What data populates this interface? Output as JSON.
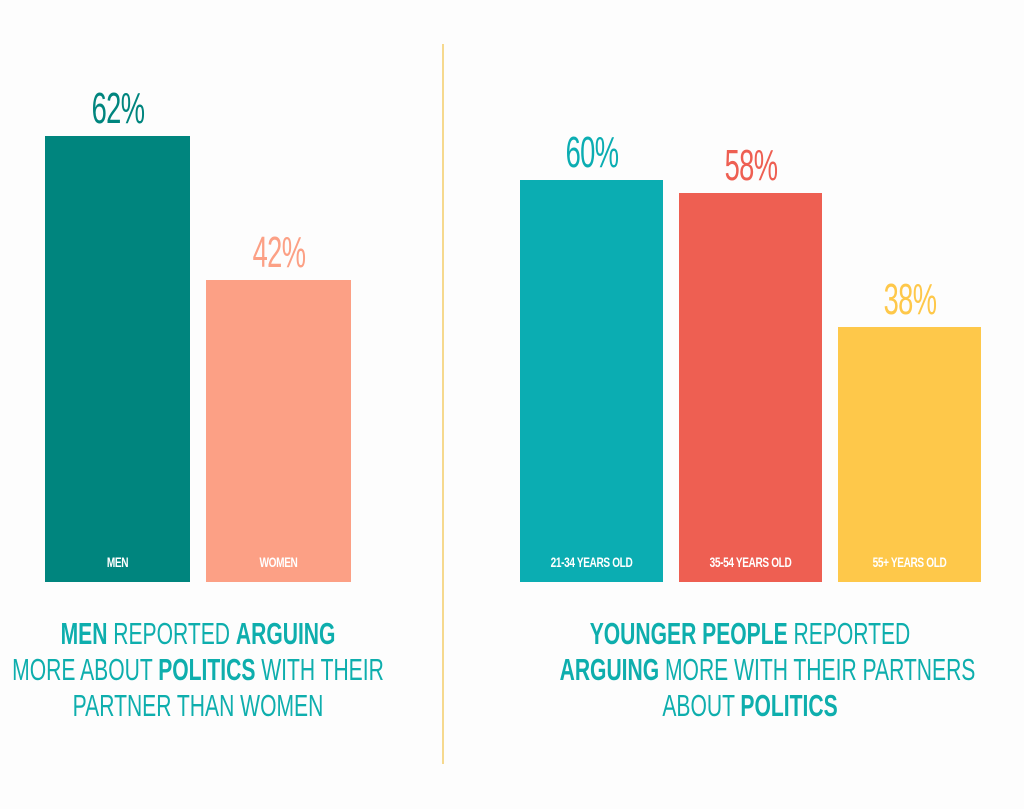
{
  "chart_data": [
    {
      "type": "bar",
      "categories": [
        "MEN",
        "WOMEN"
      ],
      "values": [
        62,
        42
      ],
      "value_labels": [
        "62%",
        "42%"
      ],
      "colors": [
        "#00857e",
        "#fca085"
      ],
      "caption": [
        [
          {
            "text": "MEN",
            "bold": true
          },
          {
            "text": " REPORTED ",
            "bold": false
          },
          {
            "text": "ARGUING",
            "bold": true
          }
        ],
        [
          {
            "text": "MORE ABOUT ",
            "bold": false
          },
          {
            "text": "POLITICS",
            "bold": true
          },
          {
            "text": " WITH THEIR",
            "bold": false
          }
        ],
        [
          {
            "text": "PARTNER THAN WOMEN",
            "bold": false
          }
        ]
      ]
    },
    {
      "type": "bar",
      "categories": [
        "21-34 YEARS OLD",
        "35-54 YEARS OLD",
        "55+ YEARS OLD"
      ],
      "values": [
        60,
        58,
        38
      ],
      "value_labels": [
        "60%",
        "58%",
        "38%"
      ],
      "colors": [
        "#0badb2",
        "#ee5f52",
        "#fec84a"
      ],
      "caption": [
        [
          {
            "text": "YOUNGER PEOPLE",
            "bold": true
          },
          {
            "text": " REPORTED",
            "bold": false
          }
        ],
        [
          {
            "text": "ARGUING",
            "bold": true
          },
          {
            "text": " MORE WITH THEIR PARTNERS",
            "bold": false
          }
        ],
        [
          {
            "text": "ABOUT ",
            "bold": false
          },
          {
            "text": "POLITICS",
            "bold": true
          }
        ]
      ]
    }
  ],
  "caption_color": "#0eaead",
  "divider_color": "#f6d98e"
}
